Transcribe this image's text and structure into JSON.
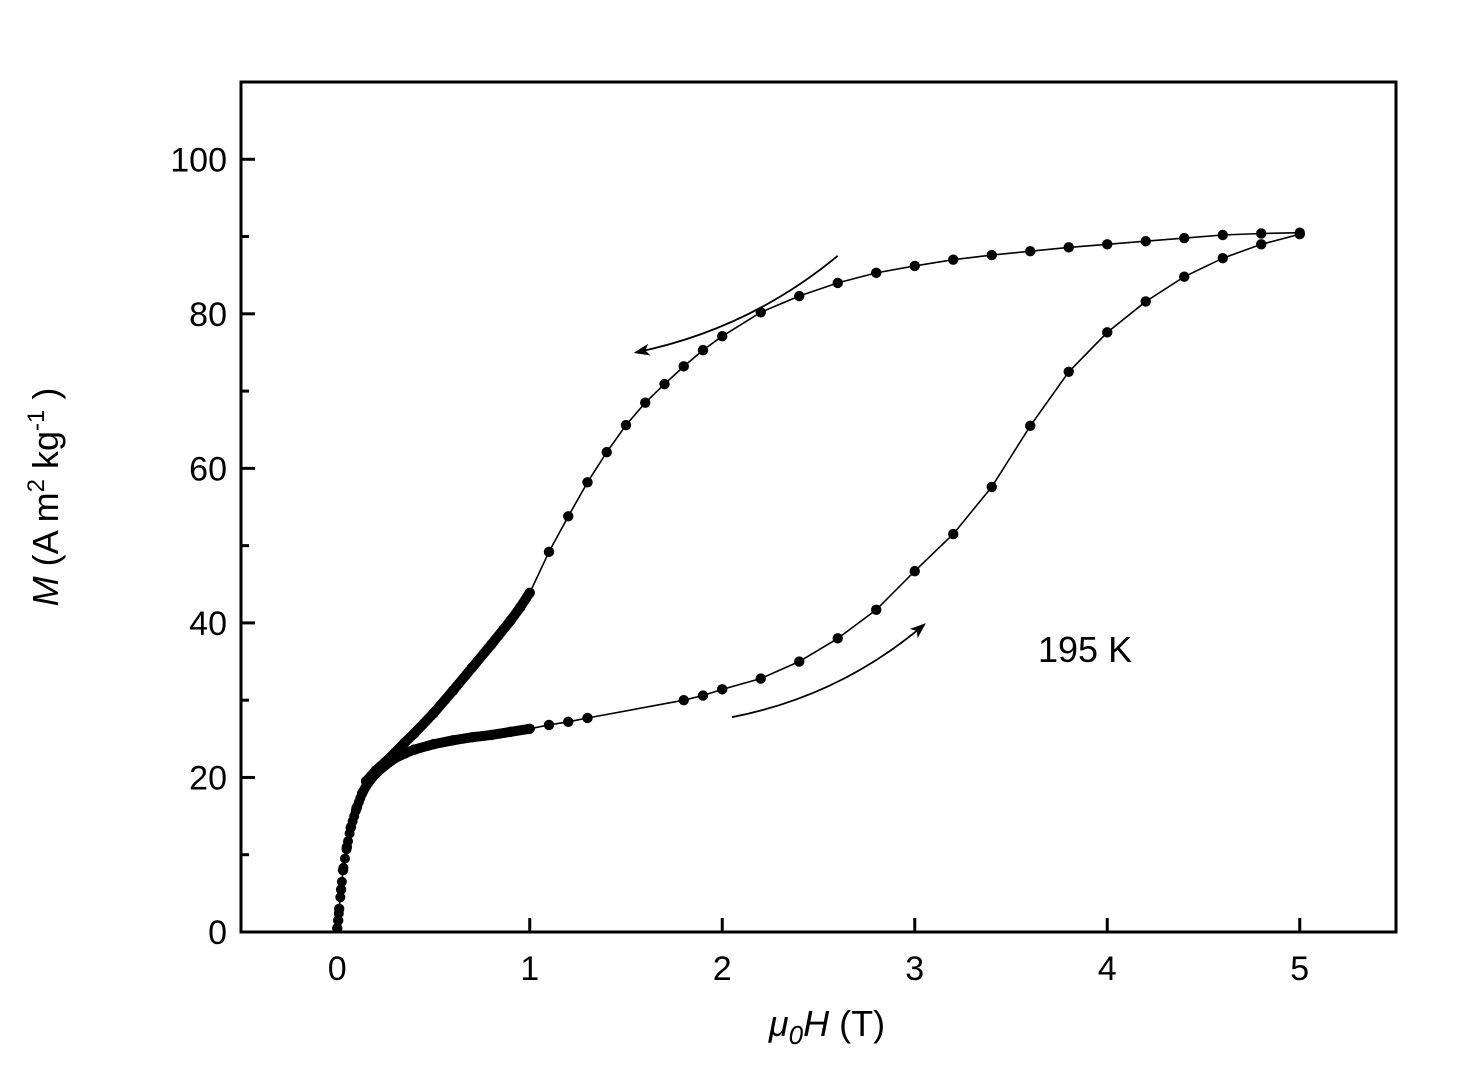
{
  "chart_data": {
    "type": "line",
    "xlabel": {
      "symbol": "μ",
      "sub": "0",
      "var": "H",
      "unit": " (T)"
    },
    "ylabel": {
      "symbol": "M",
      "unit": " (A m",
      "sup1": "2",
      "mid": " kg",
      "sup2": "-1",
      "end": " )"
    },
    "xlim": [
      -0.5,
      5.5
    ],
    "ylim": [
      0,
      110
    ],
    "x_ticks": [
      0,
      1,
      2,
      3,
      4,
      5
    ],
    "x_tick_labels": [
      "0",
      "1",
      "2",
      "3",
      "4",
      "5"
    ],
    "y_ticks": [
      0,
      20,
      40,
      60,
      80,
      100
    ],
    "y_tick_labels": [
      "0",
      "20",
      "40",
      "60",
      "80",
      "100"
    ],
    "annotation": "195 K",
    "marker_color": "#000000",
    "series": [
      {
        "role": "initial-increasing",
        "x": [
          0.0,
          0.005,
          0.01,
          0.02,
          0.03,
          0.05,
          0.07,
          0.1,
          0.13,
          0.16,
          0.2,
          0.25,
          0.3,
          0.35,
          0.4,
          0.5,
          0.6,
          0.7,
          0.8,
          0.9,
          1.0,
          1.1,
          1.2,
          1.3,
          1.8,
          1.9,
          2.0,
          2.2,
          2.4,
          2.6,
          2.8,
          3.0,
          3.2,
          3.4,
          3.6,
          3.8,
          4.0,
          4.2,
          4.4,
          4.6,
          4.8,
          5.0
        ],
        "y": [
          0.5,
          1.5,
          3.0,
          5.5,
          8.0,
          11.0,
          13.5,
          16.0,
          18.0,
          19.3,
          20.5,
          21.6,
          22.5,
          23.1,
          23.6,
          24.3,
          24.8,
          25.2,
          25.5,
          25.9,
          26.3,
          26.8,
          27.2,
          27.7,
          30.0,
          30.6,
          31.4,
          32.8,
          35.0,
          38.0,
          41.7,
          46.7,
          51.5,
          57.6,
          65.5,
          72.5,
          77.6,
          81.6,
          84.8,
          87.2,
          89.0,
          90.3
        ]
      },
      {
        "role": "decreasing",
        "x": [
          5.0,
          4.8,
          4.6,
          4.4,
          4.2,
          4.0,
          3.8,
          3.6,
          3.4,
          3.2,
          3.0,
          2.8,
          2.6,
          2.4,
          2.2,
          2.0,
          1.9,
          1.8,
          1.7,
          1.6,
          1.5,
          1.4,
          1.3,
          1.2,
          1.1,
          1.0,
          0.95,
          0.9,
          0.8,
          0.7,
          0.6,
          0.5,
          0.4,
          0.35,
          0.3,
          0.25,
          0.2,
          0.15
        ],
        "y": [
          90.5,
          90.4,
          90.2,
          89.8,
          89.4,
          89.0,
          88.6,
          88.1,
          87.6,
          87.0,
          86.2,
          85.3,
          84.0,
          82.3,
          80.2,
          77.1,
          75.3,
          73.2,
          70.9,
          68.5,
          65.6,
          62.1,
          58.2,
          53.8,
          49.2,
          43.9,
          42.0,
          40.3,
          37.2,
          34.2,
          31.2,
          28.3,
          25.7,
          24.5,
          23.2,
          22.0,
          20.9,
          19.5
        ]
      }
    ],
    "arrows": [
      {
        "direction": "decreasing-field",
        "from": [
          2.6,
          87.5
        ],
        "to": [
          1.55,
          75.0
        ]
      },
      {
        "direction": "increasing-field",
        "from": [
          2.05,
          27.8
        ],
        "to": [
          3.05,
          39.8
        ]
      }
    ]
  }
}
